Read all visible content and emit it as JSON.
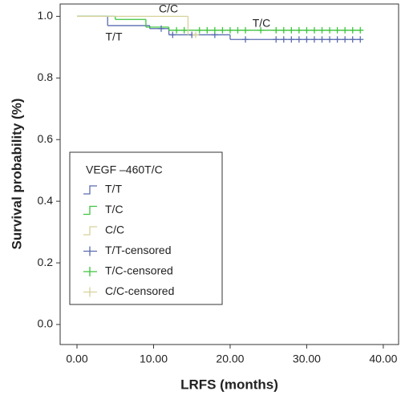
{
  "chart_data": {
    "type": "kaplan-meier",
    "xlabel": "LRFS (months)",
    "ylabel": "Survival probability (%)",
    "xlim": [
      -2.2,
      42
    ],
    "ylim": [
      -0.065,
      1.04
    ],
    "xticks": [
      {
        "value": 0,
        "label": "0.00"
      },
      {
        "value": 10,
        "label": "10.00"
      },
      {
        "value": 20,
        "label": "20.00"
      },
      {
        "value": 30,
        "label": "30.00"
      },
      {
        "value": 40,
        "label": "40.00"
      }
    ],
    "yticks": [
      {
        "value": 0,
        "label": "0.0"
      },
      {
        "value": 0.2,
        "label": "0.2"
      },
      {
        "value": 0.4,
        "label": "0.4"
      },
      {
        "value": 0.6,
        "label": "0.6"
      },
      {
        "value": 0.8,
        "label": "0.8"
      },
      {
        "value": 1.0,
        "label": "1.0"
      }
    ],
    "legend_title": "VEGF –460T/C",
    "annotations": [
      "C/C",
      "T/T",
      "T/C"
    ],
    "series": [
      {
        "name": "T/T",
        "color": "#5a6bb0",
        "x": [
          0,
          4,
          9.5,
          12,
          20,
          37
        ],
        "values": [
          1.0,
          0.97,
          0.96,
          0.94,
          0.925,
          0.925
        ]
      },
      {
        "name": "T/C",
        "color": "#3cc43c",
        "x": [
          0,
          5,
          9,
          12,
          37
        ],
        "values": [
          1.0,
          0.99,
          0.965,
          0.955,
          0.955
        ]
      },
      {
        "name": "C/C",
        "color": "#d6d19a",
        "x": [
          0,
          14.5,
          15.5
        ],
        "values": [
          1.0,
          0.94,
          0.94
        ]
      }
    ],
    "censored": [
      {
        "name": "T/T-censored",
        "color": "#5a6bb0",
        "x": [
          11,
          12.5,
          15,
          18,
          22,
          26,
          27,
          28,
          29,
          30,
          31,
          32,
          33,
          34,
          35,
          36,
          37
        ],
        "values": [
          0.96,
          0.94,
          0.94,
          0.94,
          0.925,
          0.925,
          0.925,
          0.925,
          0.925,
          0.925,
          0.925,
          0.925,
          0.925,
          0.925,
          0.925,
          0.925,
          0.925
        ]
      },
      {
        "name": "T/C-censored",
        "color": "#3cc43c",
        "x": [
          13,
          14,
          16,
          17,
          18,
          19,
          20,
          21,
          22,
          24,
          26,
          27,
          28,
          29,
          30,
          31,
          32,
          33,
          34,
          35,
          36,
          37
        ],
        "values": [
          0.955,
          0.955,
          0.955,
          0.955,
          0.955,
          0.955,
          0.955,
          0.955,
          0.955,
          0.955,
          0.955,
          0.955,
          0.955,
          0.955,
          0.955,
          0.955,
          0.955,
          0.955,
          0.955,
          0.955,
          0.955,
          0.955
        ]
      },
      {
        "name": "C/C-censored",
        "color": "#d6d19a",
        "x": [
          15.5
        ],
        "values": [
          0.94
        ]
      }
    ]
  }
}
